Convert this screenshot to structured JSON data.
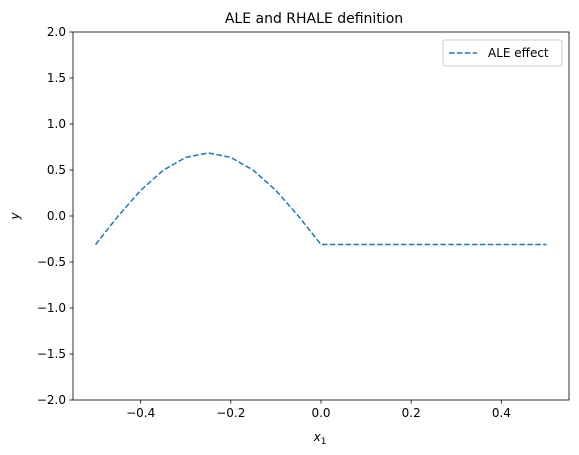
{
  "chart_data": {
    "type": "line",
    "title": "ALE and RHALE definition",
    "xlabel_main": "x",
    "xlabel_sub": "1",
    "ylabel": "y",
    "xlim": [
      -0.55,
      0.55
    ],
    "ylim": [
      -2.0,
      2.0
    ],
    "xticks": [
      -0.4,
      -0.2,
      0.0,
      0.2,
      0.4
    ],
    "xtick_labels": [
      "−0.4",
      "−0.2",
      "0.0",
      "0.2",
      "0.4"
    ],
    "yticks": [
      -2.0,
      -1.5,
      -1.0,
      -0.5,
      0.0,
      0.5,
      1.0,
      1.5,
      2.0
    ],
    "ytick_labels": [
      "−2.0",
      "−1.5",
      "−1.0",
      "−0.5",
      "0.0",
      "0.5",
      "1.0",
      "1.5",
      "2.0"
    ],
    "grid": false,
    "legend_position": "top-right",
    "series": [
      {
        "name": "ALE effect",
        "style": "dashed",
        "color": "#1f77b4",
        "x": [
          -0.5,
          -0.45,
          -0.4,
          -0.35,
          -0.3,
          -0.25,
          -0.2,
          -0.15,
          -0.1,
          -0.05,
          0.0,
          0.1,
          0.2,
          0.3,
          0.4,
          0.5
        ],
        "y": [
          -0.31,
          -0.001,
          0.278,
          0.497,
          0.637,
          0.686,
          0.637,
          0.497,
          0.278,
          -0.001,
          -0.31,
          -0.31,
          -0.31,
          -0.31,
          -0.31,
          -0.31
        ]
      }
    ]
  }
}
